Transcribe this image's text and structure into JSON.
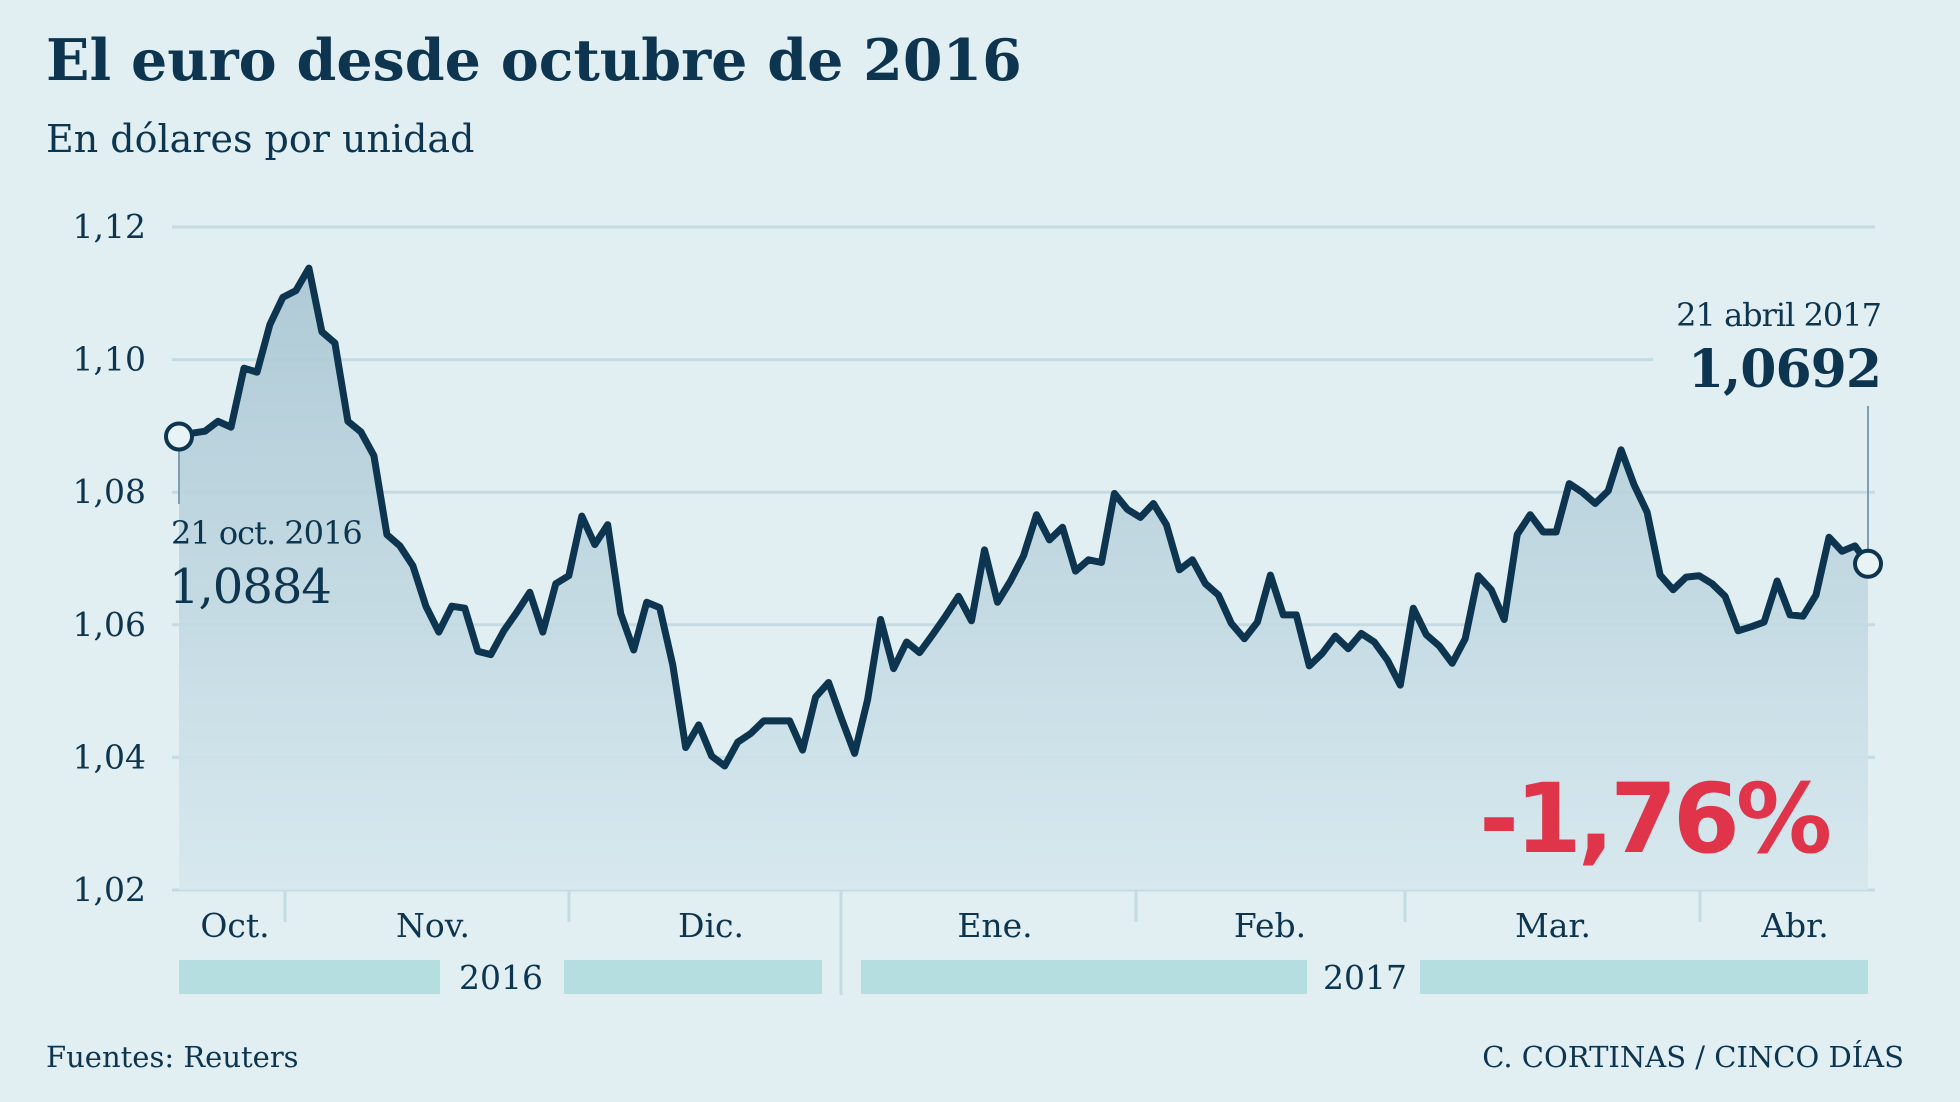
{
  "title": "El euro desde octubre de 2016",
  "subtitle": "En dólares por unidad",
  "source": "Fuentes: Reuters",
  "credit": "C. CORTINAS / CINCO DÍAS",
  "colors": {
    "background": "#e1eff3",
    "line": "#0d3550",
    "highlight": "#e0344a",
    "year_bar": "#b5dee1",
    "grid": "#c4dbe3"
  },
  "annotations": {
    "start_date": "21 oct. 2016",
    "start_value": "1,0884",
    "end_date": "21 abril 2017",
    "end_value": "1,0692",
    "change": "-1,76%"
  },
  "chart_data": {
    "type": "area",
    "title": "El euro desde octubre de 2016",
    "subtitle": "En dólares por unidad",
    "xlabel": "",
    "ylabel": "",
    "ylim": [
      1.02,
      1.12
    ],
    "yticks": [
      1.02,
      1.04,
      1.06,
      1.08,
      1.1,
      1.12
    ],
    "ytick_labels": [
      "1,02",
      "1,04",
      "1,06",
      "1,08",
      "1,10",
      "1,12"
    ],
    "grid": true,
    "x_range": [
      "21 oct. 2016",
      "21 abril 2017"
    ],
    "months": [
      "Oct.",
      "Nov.",
      "Dic.",
      "Ene.",
      "Feb.",
      "Mar.",
      "Abr."
    ],
    "years": [
      "2016",
      "2017"
    ],
    "values": [
      1.0884,
      1.0889,
      1.0892,
      1.0907,
      1.0898,
      1.0987,
      1.0981,
      1.1053,
      1.1094,
      1.1104,
      1.1138,
      1.1042,
      1.1025,
      1.0907,
      1.0891,
      1.0855,
      1.0736,
      1.0719,
      1.0689,
      1.0628,
      1.0589,
      1.0628,
      1.0625,
      1.056,
      1.0555,
      1.0591,
      1.0619,
      1.0649,
      1.0589,
      1.0662,
      1.0674,
      1.0764,
      1.0721,
      1.0751,
      1.0617,
      1.0562,
      1.0634,
      1.0626,
      1.054,
      1.0415,
      1.0449,
      1.0402,
      1.0387,
      1.0423,
      1.0436,
      1.0455,
      1.0455,
      1.0455,
      1.0411,
      1.0491,
      1.0513,
      1.0458,
      1.0406,
      1.0487,
      1.0608,
      1.0534,
      1.0574,
      1.0558,
      1.0585,
      1.0613,
      1.0643,
      1.0606,
      1.0713,
      1.0634,
      1.0666,
      1.0704,
      1.0766,
      1.0728,
      1.0747,
      1.0681,
      1.0698,
      1.0694,
      1.0798,
      1.0774,
      1.0762,
      1.0783,
      1.0751,
      1.0683,
      1.0698,
      1.0662,
      1.0645,
      1.0602,
      1.0579,
      1.0604,
      1.0675,
      1.0615,
      1.0615,
      1.0538,
      1.0557,
      1.0583,
      1.0564,
      1.0587,
      1.0574,
      1.0547,
      1.0509,
      1.0625,
      1.0585,
      1.0568,
      1.0542,
      1.0579,
      1.0674,
      1.0653,
      1.0608,
      1.0736,
      1.0766,
      1.074,
      1.074,
      1.0813,
      1.08,
      1.0783,
      1.0802,
      1.0864,
      1.0811,
      1.077,
      1.0675,
      1.0653,
      1.0672,
      1.0674,
      1.0662,
      1.0643,
      1.0591,
      1.0597,
      1.0604,
      1.0666,
      1.0615,
      1.0613,
      1.0645,
      1.0732,
      1.0711,
      1.0719,
      1.0692
    ]
  }
}
